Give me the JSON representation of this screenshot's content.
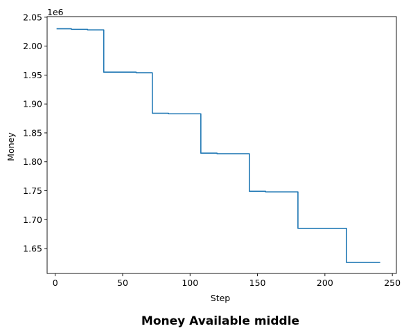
{
  "chart_data": {
    "type": "line",
    "title": "Money Available middle",
    "xlabel": "Step",
    "ylabel": "Money",
    "y_offset_label": "1e6",
    "xlim": [
      -6,
      253
    ],
    "ylim": [
      1.607,
      2.051
    ],
    "x_ticks": [
      0,
      50,
      100,
      150,
      200,
      250
    ],
    "y_ticks": [
      1.65,
      1.7,
      1.75,
      1.8,
      1.85,
      1.9,
      1.95,
      2.0,
      2.05
    ],
    "y_tick_labels": [
      "1.65",
      "1.70",
      "1.75",
      "1.80",
      "1.85",
      "1.90",
      "1.95",
      "2.00",
      "2.05"
    ],
    "grid": false,
    "series": [
      {
        "color": "#1f77b4",
        "x": [
          1,
          12,
          12,
          24,
          24,
          36,
          36,
          48,
          48,
          60,
          60,
          72,
          72,
          84,
          84,
          96,
          96,
          108,
          108,
          120,
          120,
          132,
          132,
          144,
          144,
          156,
          156,
          168,
          168,
          180,
          180,
          216,
          216,
          241
        ],
        "y": [
          2.03,
          2.03,
          2.029,
          2.029,
          2.028,
          2.028,
          1.955,
          1.955,
          1.955,
          1.955,
          1.954,
          1.954,
          1.884,
          1.884,
          1.883,
          1.883,
          1.883,
          1.883,
          1.815,
          1.815,
          1.814,
          1.814,
          1.814,
          1.814,
          1.749,
          1.749,
          1.748,
          1.748,
          1.748,
          1.748,
          1.685,
          1.685,
          1.626,
          1.626
        ]
      }
    ]
  }
}
